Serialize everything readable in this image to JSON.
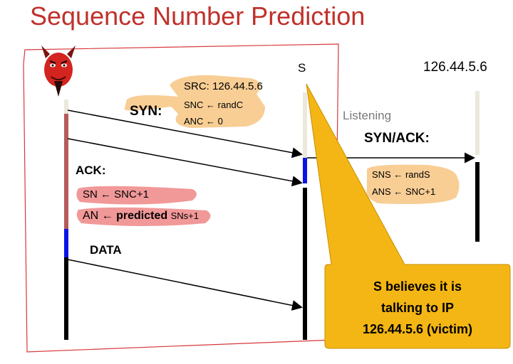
{
  "title": "Sequence Number Prediction",
  "hosts": {
    "server": "S",
    "victim_ip": "126.44.5.6"
  },
  "syn": {
    "label": "SYN",
    "colon": ":",
    "src": "SRC: 126.44.5.6",
    "sn_line": "SNC ← randC",
    "an_line": "ANC ← 0"
  },
  "listening": "Listening",
  "synack": {
    "label": "SYN/ACK",
    "colon": ":",
    "sn_line": "SNS ← randS",
    "an_line": "ANS ← SNC+1"
  },
  "ack": {
    "label": "ACK",
    "colon": ":",
    "sn_line": "SN ← SNC+1",
    "an_line_prefix": "AN ←",
    "an_line_bold": "predicted",
    "an_line_suffix": "SNs+1"
  },
  "data_label": "DATA",
  "callout": {
    "line1": "S believes it is",
    "line2": "talking to IP",
    "line3": "126.44.5.6 (victim)"
  },
  "colors": {
    "title": "#c0312b",
    "attacker_line": "#b75a5a",
    "blue": "#0a14e6",
    "highlight": "#f7c98a",
    "pink": "#f08d8d",
    "callout": "#f4b614",
    "border": "#d9373a"
  }
}
